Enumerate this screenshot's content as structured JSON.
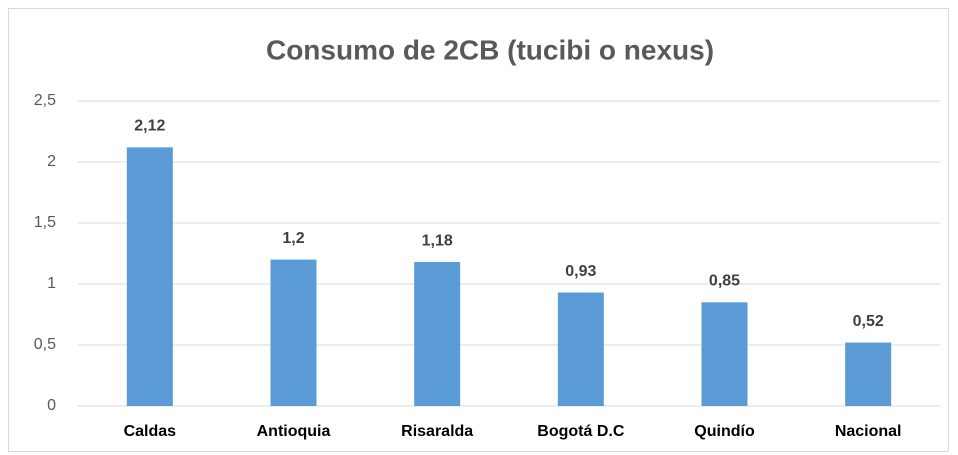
{
  "chart_data": {
    "type": "bar",
    "title": "Consumo de 2CB (tucibi o nexus)",
    "categories": [
      "Caldas",
      "Antioquia",
      "Risaralda",
      "Bogotá D.C",
      "Quindío",
      "Nacional"
    ],
    "values": [
      2.12,
      1.2,
      1.18,
      0.93,
      0.85,
      0.52
    ],
    "value_labels": [
      "2,12",
      "1,2",
      "1,18",
      "0,93",
      "0,85",
      "0,52"
    ],
    "color": "#5b9bd5",
    "ylim": [
      0,
      2.5
    ],
    "yticks": [
      0,
      {
        "value": 0.5,
        "label": "0,5"
      },
      1,
      {
        "value": 1.5,
        "label": "1,5"
      },
      2,
      {
        "value": 2.5,
        "label": "2,5"
      }
    ],
    "grid": true
  }
}
